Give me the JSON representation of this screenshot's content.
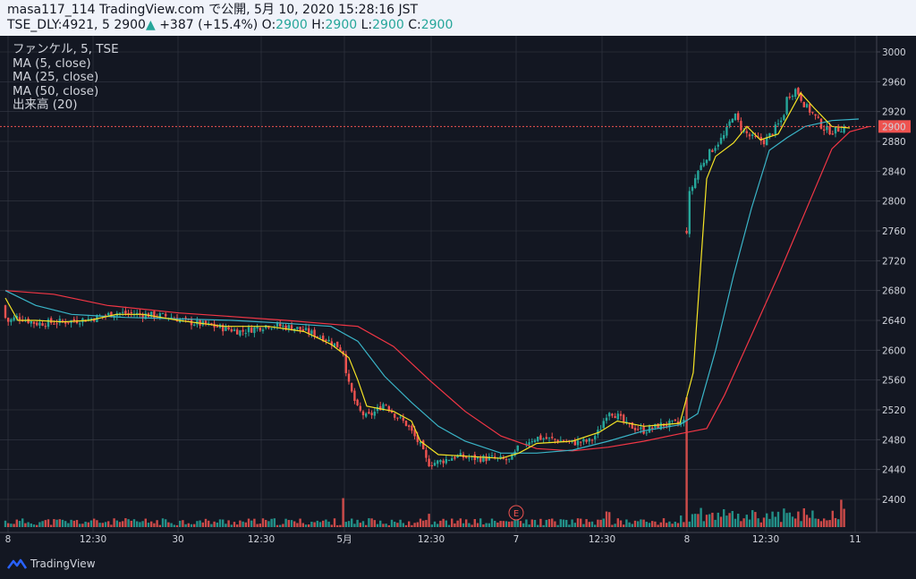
{
  "header": {
    "line1": "masa117_114 TradingView.com で公開, 5月 10, 2020 15:28:16 JST",
    "symbol": "TSE_DLY:4921, 5",
    "last": "2900",
    "change": "+387 (+15.4%)",
    "o_label": "O:",
    "o": "2900",
    "h_label": "H:",
    "h": "2900",
    "l_label": "L:",
    "l": "2900",
    "c_label": "C:",
    "c": "2900"
  },
  "legend": {
    "title": "ファンケル, 5, TSE",
    "ma5": "MA (5, close)",
    "ma25": "MA (25, close)",
    "ma50": "MA (50, close)",
    "volume": "出来高 (20)"
  },
  "earnings_marker": "E",
  "footer_brand": "TradingView",
  "colors": {
    "background": "#131722",
    "grid": "#363a45",
    "up": "#26a69a",
    "down": "#ef5350",
    "ma5": "#f5e425",
    "ma25": "#3ab5c8",
    "ma50": "#f23645",
    "price_line": "#ef5350"
  },
  "chart_data": {
    "type": "candlestick",
    "interval_minutes": 5,
    "y_axis": {
      "ticks": [
        3000,
        2960,
        2920,
        2880,
        2840,
        2800,
        2760,
        2720,
        2680,
        2640,
        2600,
        2560,
        2520,
        2480,
        2440,
        2400
      ],
      "range": [
        2370,
        3010
      ],
      "last_price": 2900
    },
    "x_axis": {
      "ticks": [
        "8",
        "12:30",
        "30",
        "12:30",
        "5月",
        "12:30",
        "7",
        "12:30",
        "8",
        "12:30",
        "11"
      ]
    },
    "close_path": [
      [
        0,
        2660
      ],
      [
        8,
        2638
      ],
      [
        20,
        2645
      ],
      [
        40,
        2636
      ],
      [
        70,
        2638
      ],
      [
        100,
        2642
      ],
      [
        130,
        2650
      ],
      [
        160,
        2648
      ],
      [
        190,
        2645
      ],
      [
        210,
        2638
      ],
      [
        240,
        2632
      ],
      [
        270,
        2625
      ],
      [
        300,
        2634
      ],
      [
        330,
        2630
      ],
      [
        360,
        2618
      ],
      [
        378,
        2605
      ],
      [
        385,
        2595
      ],
      [
        388,
        2560
      ],
      [
        400,
        2520
      ],
      [
        410,
        2510
      ],
      [
        420,
        2518
      ],
      [
        430,
        2530
      ],
      [
        440,
        2515
      ],
      [
        455,
        2500
      ],
      [
        470,
        2472
      ],
      [
        478,
        2448
      ],
      [
        490,
        2450
      ],
      [
        510,
        2458
      ],
      [
        530,
        2455
      ],
      [
        550,
        2455
      ],
      [
        570,
        2452
      ],
      [
        575,
        2460
      ],
      [
        580,
        2470
      ],
      [
        590,
        2478
      ],
      [
        600,
        2483
      ],
      [
        620,
        2480
      ],
      [
        640,
        2476
      ],
      [
        660,
        2478
      ],
      [
        670,
        2492
      ],
      [
        680,
        2520
      ],
      [
        690,
        2512
      ],
      [
        700,
        2500
      ],
      [
        720,
        2492
      ],
      [
        740,
        2500
      ],
      [
        760,
        2502
      ],
      [
        765,
        2505
      ],
      [
        768,
        2800
      ],
      [
        780,
        2840
      ],
      [
        790,
        2860
      ],
      [
        800,
        2875
      ],
      [
        810,
        2888
      ],
      [
        820,
        2918
      ],
      [
        830,
        2895
      ],
      [
        840,
        2885
      ],
      [
        855,
        2880
      ],
      [
        865,
        2895
      ],
      [
        875,
        2910
      ],
      [
        880,
        2940
      ],
      [
        890,
        2950
      ],
      [
        900,
        2928
      ],
      [
        910,
        2915
      ],
      [
        920,
        2898
      ],
      [
        930,
        2893
      ],
      [
        945,
        2900
      ]
    ],
    "ma5_path": [
      [
        6,
        2670
      ],
      [
        20,
        2640
      ],
      [
        40,
        2640
      ],
      [
        70,
        2638
      ],
      [
        100,
        2640
      ],
      [
        130,
        2648
      ],
      [
        160,
        2648
      ],
      [
        200,
        2640
      ],
      [
        250,
        2632
      ],
      [
        300,
        2632
      ],
      [
        340,
        2625
      ],
      [
        370,
        2608
      ],
      [
        390,
        2590
      ],
      [
        400,
        2560
      ],
      [
        410,
        2525
      ],
      [
        440,
        2518
      ],
      [
        460,
        2505
      ],
      [
        470,
        2478
      ],
      [
        490,
        2460
      ],
      [
        520,
        2458
      ],
      [
        560,
        2455
      ],
      [
        580,
        2462
      ],
      [
        600,
        2475
      ],
      [
        640,
        2478
      ],
      [
        670,
        2490
      ],
      [
        690,
        2505
      ],
      [
        720,
        2498
      ],
      [
        760,
        2502
      ],
      [
        775,
        2570
      ],
      [
        790,
        2830
      ],
      [
        800,
        2860
      ],
      [
        820,
        2878
      ],
      [
        835,
        2900
      ],
      [
        850,
        2882
      ],
      [
        870,
        2890
      ],
      [
        895,
        2945
      ],
      [
        910,
        2925
      ],
      [
        930,
        2900
      ],
      [
        950,
        2898
      ]
    ],
    "ma25_path": [
      [
        6,
        2680
      ],
      [
        40,
        2660
      ],
      [
        80,
        2648
      ],
      [
        140,
        2644
      ],
      [
        200,
        2642
      ],
      [
        260,
        2640
      ],
      [
        320,
        2636
      ],
      [
        370,
        2632
      ],
      [
        400,
        2612
      ],
      [
        430,
        2565
      ],
      [
        460,
        2530
      ],
      [
        490,
        2498
      ],
      [
        520,
        2478
      ],
      [
        560,
        2462
      ],
      [
        600,
        2462
      ],
      [
        640,
        2466
      ],
      [
        680,
        2478
      ],
      [
        720,
        2492
      ],
      [
        760,
        2500
      ],
      [
        780,
        2515
      ],
      [
        800,
        2600
      ],
      [
        820,
        2700
      ],
      [
        840,
        2790
      ],
      [
        860,
        2868
      ],
      [
        880,
        2885
      ],
      [
        900,
        2900
      ],
      [
        930,
        2908
      ],
      [
        960,
        2910
      ]
    ],
    "ma50_path": [
      [
        6,
        2680
      ],
      [
        60,
        2675
      ],
      [
        120,
        2660
      ],
      [
        200,
        2650
      ],
      [
        260,
        2645
      ],
      [
        320,
        2640
      ],
      [
        400,
        2632
      ],
      [
        440,
        2605
      ],
      [
        480,
        2560
      ],
      [
        520,
        2518
      ],
      [
        560,
        2485
      ],
      [
        600,
        2468
      ],
      [
        640,
        2465
      ],
      [
        680,
        2470
      ],
      [
        720,
        2478
      ],
      [
        760,
        2488
      ],
      [
        790,
        2495
      ],
      [
        810,
        2540
      ],
      [
        840,
        2620
      ],
      [
        870,
        2700
      ],
      [
        900,
        2785
      ],
      [
        930,
        2870
      ],
      [
        950,
        2893
      ],
      [
        972,
        2900
      ]
    ],
    "volume_spikes": [
      [
        384,
        5
      ],
      [
        480,
        2
      ],
      [
        577,
        3
      ],
      [
        680,
        2
      ],
      [
        768,
        10
      ],
      [
        940,
        5
      ]
    ]
  }
}
